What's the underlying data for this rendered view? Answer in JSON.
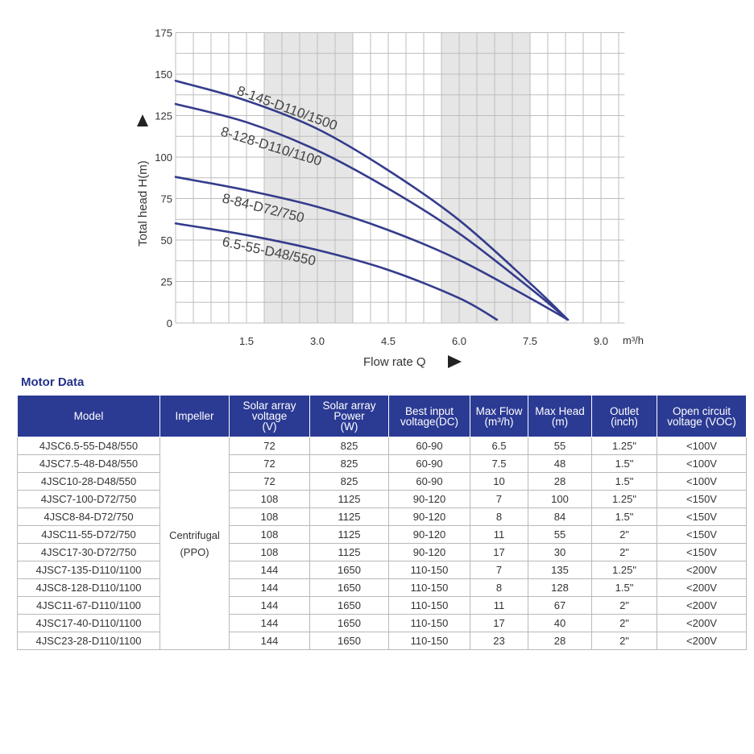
{
  "chart_data": {
    "type": "line",
    "xlabel": "Flow rate Q",
    "ylabel": "Total head H(m)",
    "x_unit": "m³/h",
    "xlim": [
      0,
      9.5
    ],
    "ylim": [
      0,
      175
    ],
    "x_ticks": [
      1.5,
      3.0,
      4.5,
      6.0,
      7.5,
      9.0
    ],
    "x_tick_labels": [
      "1.5",
      "3.0",
      "4.5",
      "6.0",
      "7.5",
      "9.0"
    ],
    "y_ticks": [
      0,
      25,
      50,
      75,
      100,
      125,
      150,
      175
    ],
    "y_tick_labels": [
      "0",
      "25",
      "50",
      "75",
      "100",
      "125",
      "150",
      "175"
    ],
    "shaded_x_ranges": [
      [
        1.875,
        3.75
      ],
      [
        5.625,
        7.5
      ]
    ],
    "grid": true,
    "series": [
      {
        "name": "8-145-D110/1500",
        "x": [
          0,
          1.5,
          3.0,
          4.5,
          6.0,
          7.5,
          8.3
        ],
        "y": [
          146,
          134,
          117,
          92,
          62,
          24,
          2
        ]
      },
      {
        "name": "8-128-D110/1100",
        "x": [
          0,
          1.5,
          3.0,
          4.5,
          6.0,
          7.5,
          8.3
        ],
        "y": [
          132,
          121,
          104,
          81,
          54,
          21,
          2
        ]
      },
      {
        "name": "8-84-D72/750",
        "x": [
          0,
          1.5,
          3.0,
          4.5,
          6.0,
          7.5,
          8.3
        ],
        "y": [
          88,
          80,
          70,
          56,
          38,
          15,
          2
        ]
      },
      {
        "name": "6.5-55-D48/550",
        "x": [
          0,
          1.5,
          3.0,
          4.5,
          6.0,
          6.8
        ],
        "y": [
          60,
          53,
          44,
          32,
          15,
          2
        ]
      }
    ]
  },
  "motor_data": {
    "title": "Motor Data",
    "headers": [
      [
        "Model"
      ],
      [
        "Impeller"
      ],
      [
        "Solar array",
        "voltage",
        "(V)"
      ],
      [
        "Solar array",
        "Power",
        "(W)"
      ],
      [
        "Best input",
        "voltage(DC)"
      ],
      [
        "Max Flow",
        "(m³/h)"
      ],
      [
        "Max Head",
        "(m)"
      ],
      [
        "Outlet",
        "(inch)"
      ],
      [
        "Open circuit",
        "voltage (VOC)"
      ]
    ],
    "impeller": [
      "Centrifugal",
      "(PPO)"
    ],
    "rows": [
      [
        "4JSC6.5-55-D48/550",
        "72",
        "825",
        "60-90",
        "6.5",
        "55",
        "1.25\"",
        "<100V"
      ],
      [
        "4JSC7.5-48-D48/550",
        "72",
        "825",
        "60-90",
        "7.5",
        "48",
        "1.5\"",
        "<100V"
      ],
      [
        "4JSC10-28-D48/550",
        "72",
        "825",
        "60-90",
        "10",
        "28",
        "1.5\"",
        "<100V"
      ],
      [
        "4JSC7-100-D72/750",
        "108",
        "1125",
        "90-120",
        "7",
        "100",
        "1.25\"",
        "<150V"
      ],
      [
        "4JSC8-84-D72/750",
        "108",
        "1125",
        "90-120",
        "8",
        "84",
        "1.5\"",
        "<150V"
      ],
      [
        "4JSC11-55-D72/750",
        "108",
        "1125",
        "90-120",
        "11",
        "55",
        "2\"",
        "<150V"
      ],
      [
        "4JSC17-30-D72/750",
        "108",
        "1125",
        "90-120",
        "17",
        "30",
        "2\"",
        "<150V"
      ],
      [
        "4JSC7-135-D110/1100",
        "144",
        "1650",
        "110-150",
        "7",
        "135",
        "1.25\"",
        "<200V"
      ],
      [
        "4JSC8-128-D110/1100",
        "144",
        "1650",
        "110-150",
        "8",
        "128",
        "1.5\"",
        "<200V"
      ],
      [
        "4JSC11-67-D110/1100",
        "144",
        "1650",
        "110-150",
        "11",
        "67",
        "2\"",
        "<200V"
      ],
      [
        "4JSC17-40-D110/1100",
        "144",
        "1650",
        "110-150",
        "17",
        "40",
        "2\"",
        "<200V"
      ],
      [
        "4JSC23-28-D110/1100",
        "144",
        "1650",
        "110-150",
        "23",
        "28",
        "2\"",
        "<200V"
      ]
    ]
  },
  "colors": {
    "curve": "#343c8c",
    "grid": "#bdbdbd",
    "shade": "#e6e6e6",
    "header_bg": "#2b3a93",
    "title": "#23318a"
  }
}
